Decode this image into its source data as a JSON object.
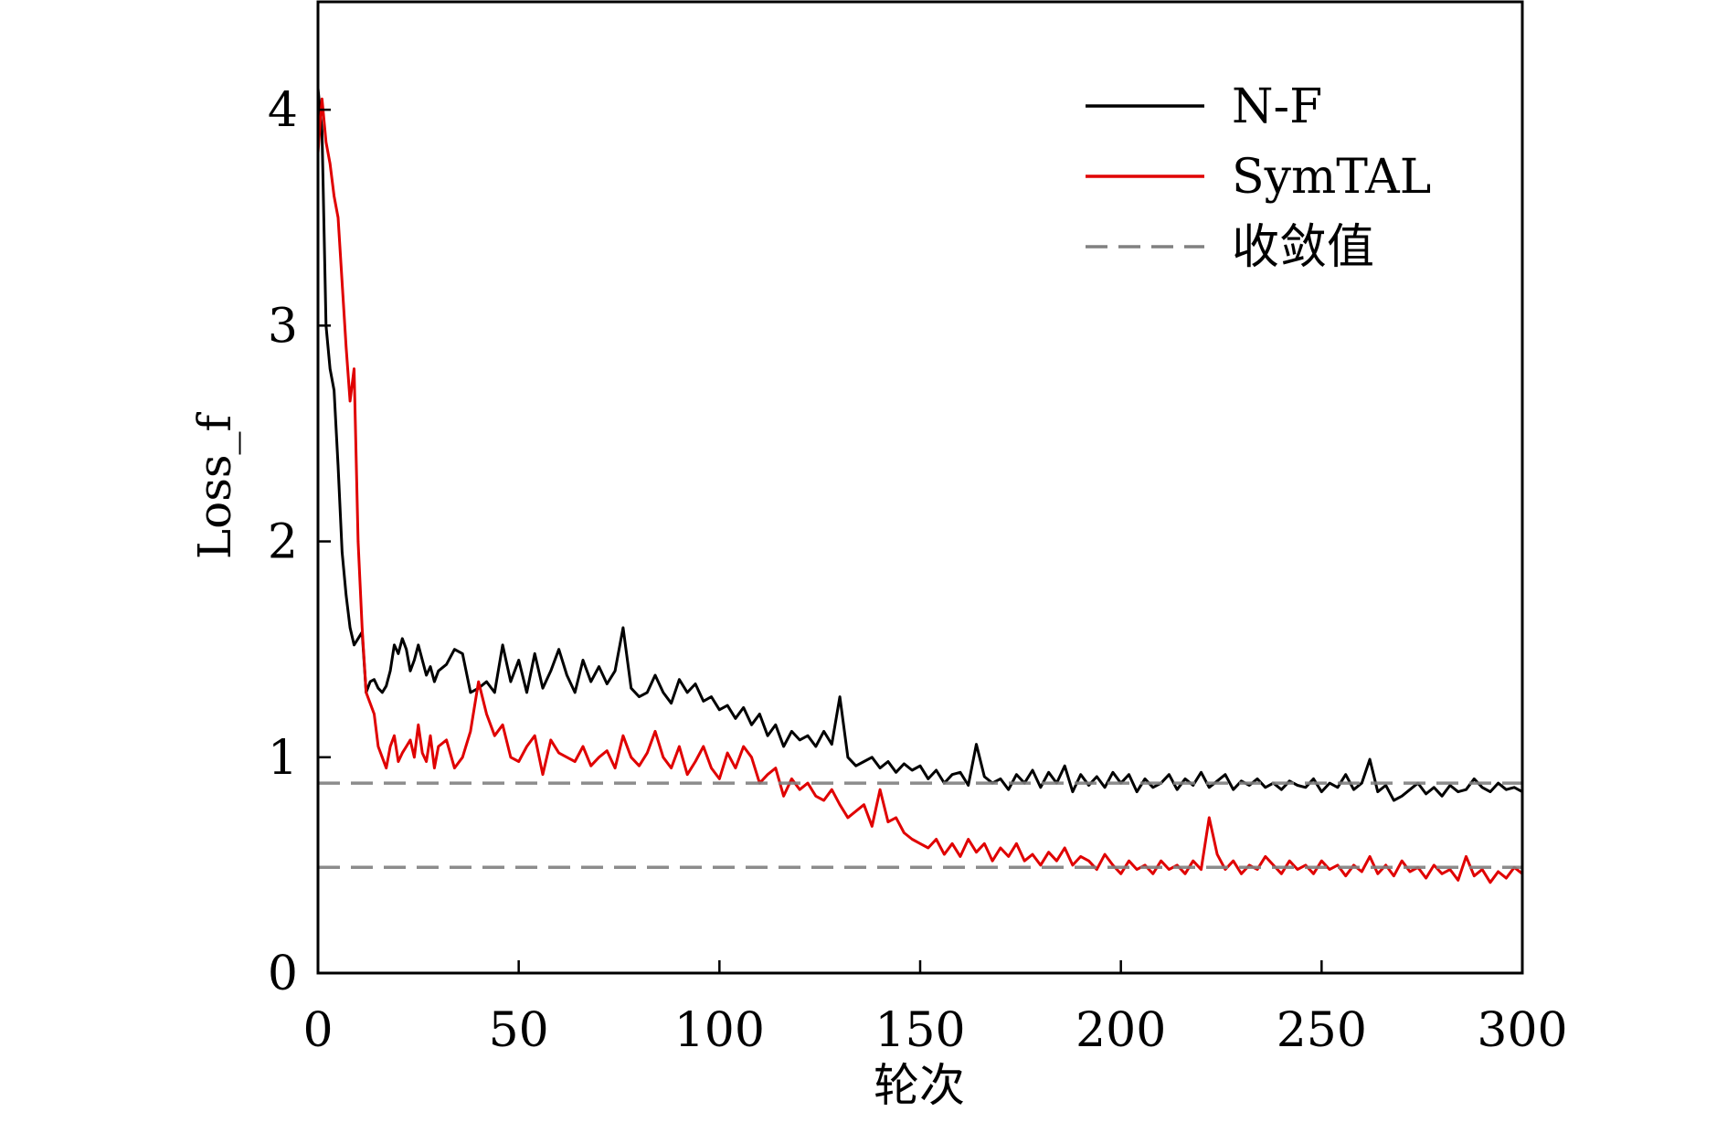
{
  "chart_data": {
    "type": "line",
    "title": "",
    "xlabel": "轮次",
    "ylabel": "Loss_f",
    "xlim": [
      0,
      300
    ],
    "ylim": [
      0,
      4.5
    ],
    "xticks": [
      0,
      50,
      100,
      150,
      200,
      250,
      300
    ],
    "yticks": [
      0,
      1,
      2,
      3,
      4
    ],
    "grid": false,
    "legend_position": "top-right",
    "legend": [
      {
        "label": "N-F",
        "color": "#000000",
        "style": "solid"
      },
      {
        "label": "SymTAL",
        "color": "#e00000",
        "style": "solid"
      },
      {
        "label": "收敛值",
        "color": "#808080",
        "style": "dashed"
      }
    ],
    "series": [
      {
        "name": "N-F",
        "color": "#000000",
        "style": "solid",
        "x": [
          0,
          1,
          2,
          3,
          4,
          5,
          6,
          7,
          8,
          9,
          10,
          11,
          12,
          13,
          14,
          15,
          16,
          17,
          18,
          19,
          20,
          21,
          22,
          23,
          24,
          25,
          26,
          27,
          28,
          29,
          30,
          32,
          34,
          36,
          38,
          40,
          42,
          44,
          46,
          48,
          50,
          52,
          54,
          56,
          58,
          60,
          62,
          64,
          66,
          68,
          70,
          72,
          74,
          76,
          78,
          80,
          82,
          84,
          86,
          88,
          90,
          92,
          94,
          96,
          98,
          100,
          102,
          104,
          106,
          108,
          110,
          112,
          114,
          116,
          118,
          120,
          122,
          124,
          126,
          128,
          130,
          132,
          134,
          136,
          138,
          140,
          142,
          144,
          146,
          148,
          150,
          152,
          154,
          156,
          158,
          160,
          162,
          164,
          166,
          168,
          170,
          172,
          174,
          176,
          178,
          180,
          182,
          184,
          186,
          188,
          190,
          192,
          194,
          196,
          198,
          200,
          202,
          204,
          206,
          208,
          210,
          212,
          214,
          216,
          218,
          220,
          222,
          224,
          226,
          228,
          230,
          232,
          234,
          236,
          238,
          240,
          242,
          244,
          246,
          248,
          250,
          252,
          254,
          256,
          258,
          260,
          262,
          264,
          266,
          268,
          270,
          272,
          274,
          276,
          278,
          280,
          282,
          284,
          286,
          288,
          290,
          292,
          294,
          296,
          298,
          300
        ],
        "y": [
          4.1,
          3.9,
          3.0,
          2.8,
          2.7,
          2.35,
          1.95,
          1.75,
          1.6,
          1.52,
          1.55,
          1.58,
          1.3,
          1.35,
          1.36,
          1.32,
          1.3,
          1.33,
          1.4,
          1.52,
          1.48,
          1.55,
          1.5,
          1.4,
          1.45,
          1.52,
          1.45,
          1.38,
          1.42,
          1.35,
          1.4,
          1.43,
          1.5,
          1.48,
          1.3,
          1.32,
          1.35,
          1.3,
          1.52,
          1.35,
          1.45,
          1.3,
          1.48,
          1.32,
          1.4,
          1.5,
          1.38,
          1.3,
          1.45,
          1.35,
          1.42,
          1.34,
          1.4,
          1.6,
          1.32,
          1.28,
          1.3,
          1.38,
          1.3,
          1.25,
          1.36,
          1.3,
          1.34,
          1.26,
          1.28,
          1.22,
          1.24,
          1.18,
          1.23,
          1.15,
          1.2,
          1.1,
          1.15,
          1.05,
          1.12,
          1.08,
          1.1,
          1.05,
          1.12,
          1.06,
          1.28,
          1.0,
          0.96,
          0.98,
          1.0,
          0.95,
          0.98,
          0.93,
          0.97,
          0.94,
          0.96,
          0.9,
          0.94,
          0.88,
          0.92,
          0.93,
          0.87,
          1.06,
          0.91,
          0.88,
          0.9,
          0.85,
          0.92,
          0.88,
          0.94,
          0.86,
          0.93,
          0.88,
          0.96,
          0.84,
          0.92,
          0.87,
          0.91,
          0.86,
          0.93,
          0.88,
          0.92,
          0.84,
          0.9,
          0.86,
          0.88,
          0.92,
          0.85,
          0.9,
          0.87,
          0.93,
          0.86,
          0.89,
          0.92,
          0.85,
          0.89,
          0.87,
          0.9,
          0.86,
          0.88,
          0.85,
          0.89,
          0.87,
          0.86,
          0.9,
          0.84,
          0.88,
          0.86,
          0.92,
          0.85,
          0.88,
          0.99,
          0.84,
          0.87,
          0.8,
          0.82,
          0.85,
          0.88,
          0.83,
          0.86,
          0.82,
          0.87,
          0.84,
          0.85,
          0.9,
          0.86,
          0.84,
          0.88,
          0.85,
          0.86,
          0.84
        ],
        "ref_level": 0.88
      },
      {
        "name": "SymTAL",
        "color": "#e00000",
        "style": "solid",
        "x": [
          0,
          1,
          2,
          3,
          4,
          5,
          6,
          7,
          8,
          9,
          10,
          11,
          12,
          13,
          14,
          15,
          16,
          17,
          18,
          19,
          20,
          21,
          22,
          23,
          24,
          25,
          26,
          27,
          28,
          29,
          30,
          32,
          34,
          36,
          38,
          40,
          42,
          44,
          46,
          48,
          50,
          52,
          54,
          56,
          58,
          60,
          62,
          64,
          66,
          68,
          70,
          72,
          74,
          76,
          78,
          80,
          82,
          84,
          86,
          88,
          90,
          92,
          94,
          96,
          98,
          100,
          102,
          104,
          106,
          108,
          110,
          112,
          114,
          116,
          118,
          120,
          122,
          124,
          126,
          128,
          130,
          132,
          134,
          136,
          138,
          140,
          142,
          144,
          146,
          148,
          150,
          152,
          154,
          156,
          158,
          160,
          162,
          164,
          166,
          168,
          170,
          172,
          174,
          176,
          178,
          180,
          182,
          184,
          186,
          188,
          190,
          192,
          194,
          196,
          198,
          200,
          202,
          204,
          206,
          208,
          210,
          212,
          214,
          216,
          218,
          220,
          222,
          224,
          226,
          228,
          230,
          232,
          234,
          236,
          238,
          240,
          242,
          244,
          246,
          248,
          250,
          252,
          254,
          256,
          258,
          260,
          262,
          264,
          266,
          268,
          270,
          272,
          274,
          276,
          278,
          280,
          282,
          284,
          286,
          288,
          290,
          292,
          294,
          296,
          298,
          300
        ],
        "y": [
          3.8,
          4.05,
          3.85,
          3.75,
          3.6,
          3.5,
          3.2,
          2.9,
          2.65,
          2.8,
          2.0,
          1.6,
          1.3,
          1.25,
          1.2,
          1.05,
          1.0,
          0.95,
          1.05,
          1.1,
          0.98,
          1.02,
          1.05,
          1.08,
          1.0,
          1.15,
          1.02,
          0.98,
          1.1,
          0.95,
          1.05,
          1.08,
          0.95,
          1.0,
          1.12,
          1.35,
          1.2,
          1.1,
          1.15,
          1.0,
          0.98,
          1.05,
          1.1,
          0.92,
          1.08,
          1.02,
          1.0,
          0.98,
          1.05,
          0.96,
          1.0,
          1.03,
          0.95,
          1.1,
          1.0,
          0.96,
          1.02,
          1.12,
          1.0,
          0.95,
          1.05,
          0.92,
          0.98,
          1.05,
          0.95,
          0.9,
          1.02,
          0.95,
          1.05,
          1.0,
          0.88,
          0.92,
          0.95,
          0.82,
          0.9,
          0.85,
          0.88,
          0.82,
          0.8,
          0.85,
          0.78,
          0.72,
          0.75,
          0.78,
          0.68,
          0.85,
          0.7,
          0.72,
          0.65,
          0.62,
          0.6,
          0.58,
          0.62,
          0.55,
          0.6,
          0.54,
          0.62,
          0.56,
          0.6,
          0.52,
          0.58,
          0.54,
          0.6,
          0.52,
          0.55,
          0.5,
          0.56,
          0.52,
          0.58,
          0.5,
          0.54,
          0.52,
          0.48,
          0.55,
          0.5,
          0.46,
          0.52,
          0.48,
          0.5,
          0.46,
          0.52,
          0.48,
          0.5,
          0.46,
          0.52,
          0.48,
          0.72,
          0.55,
          0.48,
          0.52,
          0.46,
          0.5,
          0.48,
          0.54,
          0.5,
          0.46,
          0.52,
          0.48,
          0.5,
          0.46,
          0.52,
          0.48,
          0.5,
          0.45,
          0.5,
          0.47,
          0.54,
          0.46,
          0.5,
          0.45,
          0.52,
          0.47,
          0.49,
          0.44,
          0.5,
          0.46,
          0.48,
          0.43,
          0.54,
          0.45,
          0.48,
          0.42,
          0.47,
          0.44,
          0.49,
          0.46
        ],
        "ref_level": 0.49
      }
    ]
  }
}
